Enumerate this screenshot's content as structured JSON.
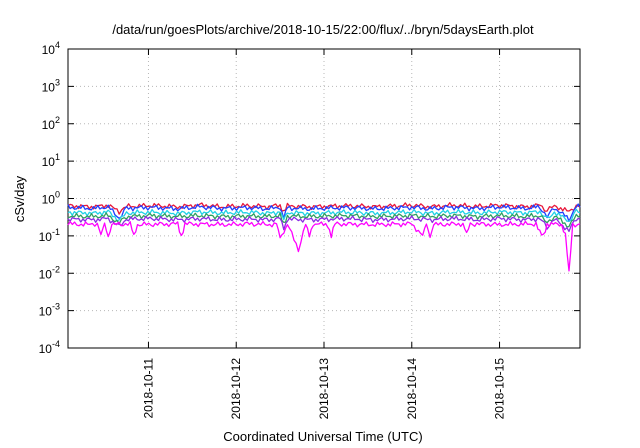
{
  "chart_data": {
    "type": "line",
    "title": "/data/run/goesPlots/archive/2018-10-15/22:00/flux/../bryn/5daysEarth.plot",
    "xlabel": "Coordinated Universal Time (UTC)",
    "ylabel": "cSv/day",
    "y_scale": "log",
    "ylim": [
      0.0001,
      10000
    ],
    "y_ticks": [
      {
        "value": 0.0001,
        "base": "10",
        "exp": "-4"
      },
      {
        "value": 0.001,
        "base": "10",
        "exp": "-3"
      },
      {
        "value": 0.01,
        "base": "10",
        "exp": "-2"
      },
      {
        "value": 0.1,
        "base": "10",
        "exp": "-1"
      },
      {
        "value": 1,
        "base": "10",
        "exp": "0"
      },
      {
        "value": 10,
        "base": "10",
        "exp": "1"
      },
      {
        "value": 100,
        "base": "10",
        "exp": "2"
      },
      {
        "value": 1000,
        "base": "10",
        "exp": "3"
      },
      {
        "value": 10000,
        "base": "10",
        "exp": "4"
      }
    ],
    "xlim": [
      "2018-10-10T02:00",
      "2018-10-15T22:00"
    ],
    "x_ticks": [
      {
        "value": "2018-10-11T00:00",
        "label": "2018-10-11"
      },
      {
        "value": "2018-10-12T00:00",
        "label": "2018-10-12"
      },
      {
        "value": "2018-10-13T00:00",
        "label": "2018-10-13"
      },
      {
        "value": "2018-10-14T00:00",
        "label": "2018-10-14"
      },
      {
        "value": "2018-10-15T00:00",
        "label": "2018-10-15"
      }
    ],
    "grid": true,
    "legend": "none",
    "series": [
      {
        "color": "#e8173a",
        "base": 0.62,
        "points": [
          [
            "2018-10-10T02:00",
            0.64
          ],
          [
            "2018-10-10T09:00",
            0.6
          ],
          [
            "2018-10-10T13:00",
            0.66
          ],
          [
            "2018-10-10T16:00",
            0.45
          ],
          [
            "2018-10-10T18:00",
            0.61
          ],
          [
            "2018-10-11T01:00",
            0.65
          ],
          [
            "2018-10-11T08:00",
            0.6
          ],
          [
            "2018-10-11T14:00",
            0.67
          ],
          [
            "2018-10-11T20:00",
            0.6
          ],
          [
            "2018-10-12T03:00",
            0.64
          ],
          [
            "2018-10-12T09:00",
            0.6
          ],
          [
            "2018-10-12T12:00",
            0.66
          ],
          [
            "2018-10-12T13:00",
            0.45
          ],
          [
            "2018-10-12T14:00",
            0.63
          ],
          [
            "2018-10-12T20:00",
            0.6
          ],
          [
            "2018-10-13T06:00",
            0.64
          ],
          [
            "2018-10-13T14:00",
            0.6
          ],
          [
            "2018-10-14T00:00",
            0.66
          ],
          [
            "2018-10-14T05:00",
            0.6
          ],
          [
            "2018-10-14T11:00",
            0.66
          ],
          [
            "2018-10-14T18:00",
            0.61
          ],
          [
            "2018-10-15T00:00",
            0.66
          ],
          [
            "2018-10-15T07:00",
            0.6
          ],
          [
            "2018-10-15T11:00",
            0.66
          ],
          [
            "2018-10-15T13:00",
            0.48
          ],
          [
            "2018-10-15T15:00",
            0.64
          ],
          [
            "2018-10-15T19:00",
            0.44
          ],
          [
            "2018-10-15T21:00",
            0.66
          ],
          [
            "2018-10-15T22:00",
            0.6
          ]
        ]
      },
      {
        "color": "#1f3fff",
        "base": 0.55,
        "points": [
          [
            "2018-10-10T02:00",
            0.58
          ],
          [
            "2018-10-10T09:00",
            0.54
          ],
          [
            "2018-10-10T13:00",
            0.6
          ],
          [
            "2018-10-10T16:00",
            0.3
          ],
          [
            "2018-10-10T18:00",
            0.55
          ],
          [
            "2018-10-11T01:00",
            0.58
          ],
          [
            "2018-10-11T08:00",
            0.53
          ],
          [
            "2018-10-11T14:00",
            0.6
          ],
          [
            "2018-10-11T20:00",
            0.54
          ],
          [
            "2018-10-12T03:00",
            0.57
          ],
          [
            "2018-10-12T09:00",
            0.53
          ],
          [
            "2018-10-12T12:00",
            0.59
          ],
          [
            "2018-10-12T13:00",
            0.3
          ],
          [
            "2018-10-12T14:00",
            0.56
          ],
          [
            "2018-10-12T20:00",
            0.53
          ],
          [
            "2018-10-13T06:00",
            0.57
          ],
          [
            "2018-10-13T14:00",
            0.53
          ],
          [
            "2018-10-14T00:00",
            0.58
          ],
          [
            "2018-10-14T05:00",
            0.53
          ],
          [
            "2018-10-14T11:00",
            0.59
          ],
          [
            "2018-10-14T18:00",
            0.54
          ],
          [
            "2018-10-15T00:00",
            0.59
          ],
          [
            "2018-10-15T07:00",
            0.54
          ],
          [
            "2018-10-15T11:00",
            0.6
          ],
          [
            "2018-10-15T13:00",
            0.32
          ],
          [
            "2018-10-15T15:00",
            0.57
          ],
          [
            "2018-10-15T19:00",
            0.28
          ],
          [
            "2018-10-15T21:00",
            0.62
          ],
          [
            "2018-10-15T22:00",
            0.58
          ]
        ]
      },
      {
        "color": "#1fd1e6",
        "base": 0.42,
        "points": [
          [
            "2018-10-10T02:00",
            0.43
          ],
          [
            "2018-10-10T09:00",
            0.4
          ],
          [
            "2018-10-10T13:00",
            0.44
          ],
          [
            "2018-10-10T16:00",
            0.26
          ],
          [
            "2018-10-10T18:00",
            0.41
          ],
          [
            "2018-10-11T01:00",
            0.43
          ],
          [
            "2018-10-11T08:00",
            0.4
          ],
          [
            "2018-10-11T14:00",
            0.44
          ],
          [
            "2018-10-11T20:00",
            0.41
          ],
          [
            "2018-10-12T03:00",
            0.43
          ],
          [
            "2018-10-12T09:00",
            0.4
          ],
          [
            "2018-10-12T12:00",
            0.44
          ],
          [
            "2018-10-12T13:00",
            0.26
          ],
          [
            "2018-10-12T14:00",
            0.42
          ],
          [
            "2018-10-12T20:00",
            0.4
          ],
          [
            "2018-10-13T06:00",
            0.43
          ],
          [
            "2018-10-13T14:00",
            0.4
          ],
          [
            "2018-10-14T00:00",
            0.44
          ],
          [
            "2018-10-14T05:00",
            0.4
          ],
          [
            "2018-10-14T11:00",
            0.44
          ],
          [
            "2018-10-14T18:00",
            0.41
          ],
          [
            "2018-10-15T00:00",
            0.44
          ],
          [
            "2018-10-15T07:00",
            0.41
          ],
          [
            "2018-10-15T11:00",
            0.45
          ],
          [
            "2018-10-15T13:00",
            0.28
          ],
          [
            "2018-10-15T15:00",
            0.43
          ],
          [
            "2018-10-15T19:00",
            0.25
          ],
          [
            "2018-10-15T21:00",
            0.45
          ],
          [
            "2018-10-15T22:00",
            0.42
          ]
        ]
      },
      {
        "color": "#30a060",
        "base": 0.34,
        "points": [
          [
            "2018-10-10T02:00",
            0.34
          ],
          [
            "2018-10-10T09:00",
            0.33
          ],
          [
            "2018-10-10T13:00",
            0.35
          ],
          [
            "2018-10-10T16:00",
            0.22
          ],
          [
            "2018-10-10T18:00",
            0.33
          ],
          [
            "2018-10-11T01:00",
            0.35
          ],
          [
            "2018-10-11T08:00",
            0.33
          ],
          [
            "2018-10-11T14:00",
            0.35
          ],
          [
            "2018-10-11T20:00",
            0.33
          ],
          [
            "2018-10-12T03:00",
            0.34
          ],
          [
            "2018-10-12T09:00",
            0.33
          ],
          [
            "2018-10-12T12:00",
            0.35
          ],
          [
            "2018-10-12T13:00",
            0.2
          ],
          [
            "2018-10-12T14:00",
            0.34
          ],
          [
            "2018-10-12T20:00",
            0.33
          ],
          [
            "2018-10-13T06:00",
            0.35
          ],
          [
            "2018-10-13T14:00",
            0.33
          ],
          [
            "2018-10-14T00:00",
            0.35
          ],
          [
            "2018-10-14T05:00",
            0.33
          ],
          [
            "2018-10-14T11:00",
            0.35
          ],
          [
            "2018-10-14T18:00",
            0.33
          ],
          [
            "2018-10-15T00:00",
            0.35
          ],
          [
            "2018-10-15T07:00",
            0.33
          ],
          [
            "2018-10-15T11:00",
            0.35
          ],
          [
            "2018-10-15T13:00",
            0.22
          ],
          [
            "2018-10-15T15:00",
            0.34
          ],
          [
            "2018-10-15T19:00",
            0.18
          ],
          [
            "2018-10-15T21:00",
            0.35
          ],
          [
            "2018-10-15T22:00",
            0.34
          ]
        ]
      },
      {
        "color": "#8a2be2",
        "base": 0.28,
        "points": [
          [
            "2018-10-10T02:00",
            0.28
          ],
          [
            "2018-10-10T09:00",
            0.27
          ],
          [
            "2018-10-10T13:00",
            0.29
          ],
          [
            "2018-10-10T16:00",
            0.18
          ],
          [
            "2018-10-10T18:00",
            0.28
          ],
          [
            "2018-10-11T01:00",
            0.29
          ],
          [
            "2018-10-11T08:00",
            0.27
          ],
          [
            "2018-10-11T14:00",
            0.29
          ],
          [
            "2018-10-11T20:00",
            0.27
          ],
          [
            "2018-10-12T03:00",
            0.28
          ],
          [
            "2018-10-12T09:00",
            0.27
          ],
          [
            "2018-10-12T12:00",
            0.29
          ],
          [
            "2018-10-12T13:00",
            0.16
          ],
          [
            "2018-10-12T14:00",
            0.28
          ],
          [
            "2018-10-12T20:00",
            0.27
          ],
          [
            "2018-10-13T06:00",
            0.29
          ],
          [
            "2018-10-13T14:00",
            0.27
          ],
          [
            "2018-10-14T00:00",
            0.29
          ],
          [
            "2018-10-14T05:00",
            0.27
          ],
          [
            "2018-10-14T11:00",
            0.29
          ],
          [
            "2018-10-14T18:00",
            0.27
          ],
          [
            "2018-10-15T00:00",
            0.29
          ],
          [
            "2018-10-15T07:00",
            0.27
          ],
          [
            "2018-10-15T11:00",
            0.29
          ],
          [
            "2018-10-15T13:00",
            0.17
          ],
          [
            "2018-10-15T15:00",
            0.28
          ],
          [
            "2018-10-15T19:00",
            0.14
          ],
          [
            "2018-10-15T21:00",
            0.29
          ],
          [
            "2018-10-15T22:00",
            0.28
          ]
        ]
      },
      {
        "color": "#ff00ff",
        "base": 0.21,
        "points": [
          [
            "2018-10-10T02:00",
            0.21
          ],
          [
            "2018-10-10T08:00",
            0.2
          ],
          [
            "2018-10-10T10:00",
            0.22
          ],
          [
            "2018-10-10T11:00",
            0.1
          ],
          [
            "2018-10-10T12:00",
            0.21
          ],
          [
            "2018-10-10T13:00",
            0.1
          ],
          [
            "2018-10-10T14:00",
            0.2
          ],
          [
            "2018-10-10T19:00",
            0.21
          ],
          [
            "2018-10-10T20:00",
            0.1
          ],
          [
            "2018-10-10T21:00",
            0.2
          ],
          [
            "2018-10-11T08:00",
            0.21
          ],
          [
            "2018-10-11T09:00",
            0.1
          ],
          [
            "2018-10-11T10:00",
            0.21
          ],
          [
            "2018-10-11T22:00",
            0.2
          ],
          [
            "2018-10-12T03:00",
            0.21
          ],
          [
            "2018-10-12T11:00",
            0.2
          ],
          [
            "2018-10-12T12:00",
            0.09
          ],
          [
            "2018-10-12T13:00",
            0.13
          ],
          [
            "2018-10-12T14:00",
            0.21
          ],
          [
            "2018-10-12T17:00",
            0.043
          ],
          [
            "2018-10-12T19:00",
            0.2
          ],
          [
            "2018-10-12T20:00",
            0.1
          ],
          [
            "2018-10-12T21:00",
            0.21
          ],
          [
            "2018-10-13T01:00",
            0.2
          ],
          [
            "2018-10-13T02:00",
            0.1
          ],
          [
            "2018-10-13T03:00",
            0.21
          ],
          [
            "2018-10-13T14:00",
            0.2
          ],
          [
            "2018-10-14T00:00",
            0.21
          ],
          [
            "2018-10-14T03:00",
            0.1
          ],
          [
            "2018-10-14T04:00",
            0.21
          ],
          [
            "2018-10-14T05:00",
            0.1
          ],
          [
            "2018-10-14T06:00",
            0.2
          ],
          [
            "2018-10-14T14:00",
            0.21
          ],
          [
            "2018-10-14T15:00",
            0.11
          ],
          [
            "2018-10-14T16:00",
            0.21
          ],
          [
            "2018-10-15T00:00",
            0.2
          ],
          [
            "2018-10-15T10:00",
            0.21
          ],
          [
            "2018-10-15T11:00",
            0.12
          ],
          [
            "2018-10-15T12:00",
            0.1
          ],
          [
            "2018-10-15T13:00",
            0.21
          ],
          [
            "2018-10-15T17:00",
            0.2
          ],
          [
            "2018-10-15T18:00",
            0.11
          ],
          [
            "2018-10-15T19:00",
            0.01
          ],
          [
            "2018-10-15T20:00",
            0.2
          ],
          [
            "2018-10-15T22:00",
            0.21
          ]
        ]
      }
    ]
  }
}
